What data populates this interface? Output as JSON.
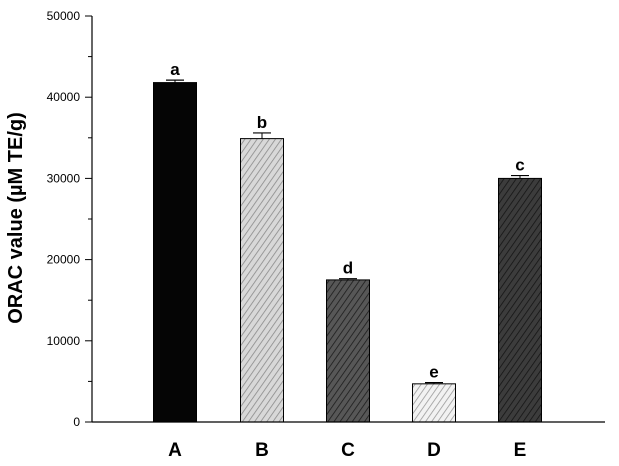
{
  "chart_data": {
    "type": "bar",
    "categories": [
      "A",
      "B",
      "C",
      "D",
      "E"
    ],
    "values": [
      41800,
      34900,
      17500,
      4700,
      30000
    ],
    "errors": [
      300,
      700,
      150,
      150,
      350
    ],
    "significance_labels": [
      "a",
      "b",
      "d",
      "e",
      "c"
    ],
    "title": "",
    "xlabel": "",
    "ylabel": "ORAC value (µM TE/g)",
    "ylim": [
      0,
      50000
    ],
    "yticks": [
      0,
      10000,
      20000,
      30000,
      40000,
      50000
    ],
    "ytick_labels": [
      "0",
      "10000",
      "20000",
      "30000",
      "40000",
      "50000"
    ],
    "grid": false,
    "legend": "none",
    "bar_styles": [
      {
        "fill": "#050505",
        "hatch": "none"
      },
      {
        "fill": "#d8d8d8",
        "hatch": "#8a8a8a"
      },
      {
        "fill": "#575757",
        "hatch": "#1c1c1c"
      },
      {
        "fill": "#f2f2f2",
        "hatch": "#9a9a9a"
      },
      {
        "fill": "#3c3c3c",
        "hatch": "#141414"
      }
    ]
  }
}
